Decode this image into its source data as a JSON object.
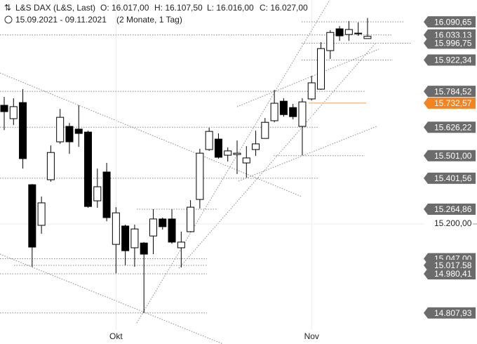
{
  "chart_data": {
    "type": "candlestick",
    "title": "L&S DAX (L&S, Last)",
    "ohlc_labels": [
      "O: 16.017,00",
      "H: 16.107,50",
      "L: 16.016,00",
      "C: 16.027,00"
    ],
    "date_range": "15.09.2021 - 09.11.2021",
    "period": "(2 Monate, 1 Tag)",
    "categories": [
      null,
      null,
      null,
      null,
      null,
      null,
      null,
      null,
      null,
      null,
      null,
      null,
      "Okt",
      null,
      null,
      null,
      null,
      null,
      null,
      null,
      null,
      null,
      null,
      null,
      null,
      null,
      null,
      null,
      null,
      null,
      null,
      null,
      null,
      "Nov",
      null,
      null,
      null,
      null,
      null,
      null
    ],
    "open": [
      15723,
      15664,
      15735,
      15373,
      15194,
      15395,
      15562,
      15630,
      15618,
      15605,
      15302,
      15429,
      15110,
      15191,
      15095,
      15116,
      15147,
      15222,
      15222,
      15095,
      15166,
      15308,
      15528,
      15574,
      15503,
      15506,
      15469,
      15528,
      15577,
      15655,
      15741,
      15713,
      15630,
      15751,
      15794,
      15964,
      16060,
      16035,
      16041,
      16017
    ],
    "high": [
      15760,
      15754,
      15794,
      15376,
      15321,
      15546,
      15707,
      15645,
      15723,
      15611,
      15444,
      15469,
      15274,
      15197,
      15197,
      15120,
      15265,
      15228,
      15265,
      15166,
      15305,
      15531,
      15624,
      15599,
      15537,
      15568,
      15543,
      15611,
      15667,
      15791,
      15754,
      15729,
      15754,
      15853,
      16001,
      16054,
      16072,
      16094,
      16088,
      16107.5
    ],
    "low": [
      15614,
      15636,
      15444,
      15011,
      15157,
      15386,
      15553,
      15509,
      15540,
      15271,
      15271,
      15212,
      14983,
      15018,
      15011,
      14808,
      15067,
      15175,
      15113,
      15008,
      15163,
      15268,
      15522,
      15488,
      15475,
      15420,
      15404,
      15500,
      15577,
      15648,
      15673,
      15661,
      15503,
      15744,
      15791,
      15927,
      16007,
      16007,
      16029,
      16016
    ],
    "close": [
      15695,
      15717,
      15488,
      15098,
      15293,
      15515,
      15670,
      15562,
      15599,
      15277,
      15364,
      15228,
      15249,
      15082,
      15178,
      15067,
      15222,
      15188,
      15120,
      15120,
      15274,
      15512,
      15608,
      15494,
      15522,
      15512,
      15491,
      15553,
      15648,
      15732,
      15682,
      15673,
      15738,
      15822,
      15973,
      16044,
      16029,
      16057,
      16038,
      16027
    ],
    "up_color": "#ffffff",
    "down_color": "#000000",
    "ylim": [
      14671,
      16187
    ],
    "yticks": [
      {
        "value": 15200,
        "label": "15.200,00"
      }
    ],
    "levels": [
      {
        "value": 16090.65,
        "label": "16.090,65"
      },
      {
        "value": 16033.13,
        "label": "16.033,13"
      },
      {
        "value": 15996.75,
        "label": "15.996,75"
      },
      {
        "value": 15922.34,
        "label": "15.922,34"
      },
      {
        "value": 15784.52,
        "label": "15.784,52"
      },
      {
        "value": 15626.22,
        "label": "15.626,22"
      },
      {
        "value": 15501.0,
        "label": "15.501,00"
      },
      {
        "value": 15401.56,
        "label": "15.401,56"
      },
      {
        "value": 15264.86,
        "label": "15.264,86"
      },
      {
        "value": 15047.0,
        "label": "15.047,00"
      },
      {
        "value": 15017.58,
        "label": "15.017,58"
      },
      {
        "value": 14980.41,
        "label": "14.980,41"
      },
      {
        "value": 14807.93,
        "label": "14.807,93"
      }
    ],
    "level_color": "#6b6b6b",
    "current": {
      "value": 15732.57,
      "label": "15.732,57",
      "color": "#f5831f"
    }
  }
}
